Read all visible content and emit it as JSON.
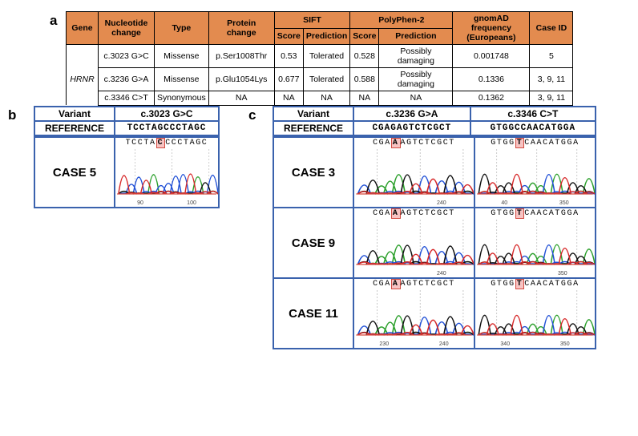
{
  "panel_a": {
    "label": "a",
    "header_top": [
      "Gene",
      "Nucleotide change",
      "Type",
      "Protein change",
      "SIFT",
      "PolyPhen-2",
      "gnomAD frequency (Europeans)",
      "Case ID"
    ],
    "header_sub1": [
      "Score",
      "Prediction"
    ],
    "header_sub2": [
      "Score",
      "Prediction"
    ],
    "gene": "HRNR",
    "rows": [
      {
        "nuc": "c.3023 G>C",
        "type": "Missense",
        "prot": "p.Ser1008Thr",
        "sift_s": "0.53",
        "sift_p": "Tolerated",
        "pp_s": "0.528",
        "pp_p": "Possibly damaging",
        "freq": "0.001748",
        "case": "5"
      },
      {
        "nuc": "c.3236 G>A",
        "type": "Missense",
        "prot": "p.Glu1054Lys",
        "sift_s": "0.677",
        "sift_p": "Tolerated",
        "pp_s": "0.588",
        "pp_p": "Possibly damaging",
        "freq": "0.1336",
        "case": "3, 9, 11"
      },
      {
        "nuc": "c.3346 C>T",
        "type": "Synonymous",
        "prot": "NA",
        "sift_s": "NA",
        "sift_p": "NA",
        "pp_s": "NA",
        "pp_p": "NA",
        "freq": "0.1362",
        "case": "3, 9, 11"
      }
    ],
    "header_bg": "#e38b4f"
  },
  "panel_b": {
    "label": "b",
    "variant_hdr": "Variant",
    "reference_hdr": "REFERENCE",
    "columns": [
      {
        "variant": "c.3023 G>C",
        "ref_seq": "TCCTAGCCCTAGC"
      }
    ],
    "cases": [
      {
        "label": "CASE 5",
        "seqs": [
          {
            "pre": "TCCTA",
            "hl": "C",
            "post": "CCCTAGC",
            "ticks": [
              "90",
              "100"
            ]
          }
        ]
      }
    ]
  },
  "panel_c": {
    "label": "c",
    "variant_hdr": "Variant",
    "reference_hdr": "REFERENCE",
    "columns": [
      {
        "variant": "c.3236 G>A",
        "ref_seq": "CGAGAGTCTCGCT"
      },
      {
        "variant": "c.3346 C>T",
        "ref_seq": "GTGGCCAACATGGA"
      }
    ],
    "cases": [
      {
        "label": "CASE 3",
        "seqs": [
          {
            "pre": "CGA",
            "hl": "A",
            "post": "AGTCTCGCT",
            "ticks": [
              "",
              "240"
            ]
          },
          {
            "pre": "GTGG",
            "hl": "T",
            "post": "CAACATGGA",
            "ticks": [
              "40",
              "350"
            ]
          }
        ]
      },
      {
        "label": "CASE 9",
        "seqs": [
          {
            "pre": "CGA",
            "hl": "A",
            "post": "AGTCTCGCT",
            "ticks": [
              "",
              "240"
            ]
          },
          {
            "pre": "GTGG",
            "hl": "T",
            "post": "CAACATGGA",
            "ticks": [
              "",
              "350"
            ]
          }
        ]
      },
      {
        "label": "CASE 11",
        "seqs": [
          {
            "pre": "CGA",
            "hl": "A",
            "post": "AGTCTCGCT",
            "ticks": [
              "230",
              "240"
            ]
          },
          {
            "pre": "GTGG",
            "hl": "T",
            "post": "CAACATGGA",
            "ticks": [
              "340",
              "350"
            ]
          }
        ]
      }
    ]
  },
  "chroma_style": {
    "colors": {
      "A": "#2ca02c",
      "C": "#1f4fd6",
      "G": "#111111",
      "T": "#d62728"
    },
    "baseline": "#d64a3f",
    "grid": "#bdbdbd",
    "peak_height": 50,
    "peak_width": 9,
    "stroke_width": 1.4
  }
}
